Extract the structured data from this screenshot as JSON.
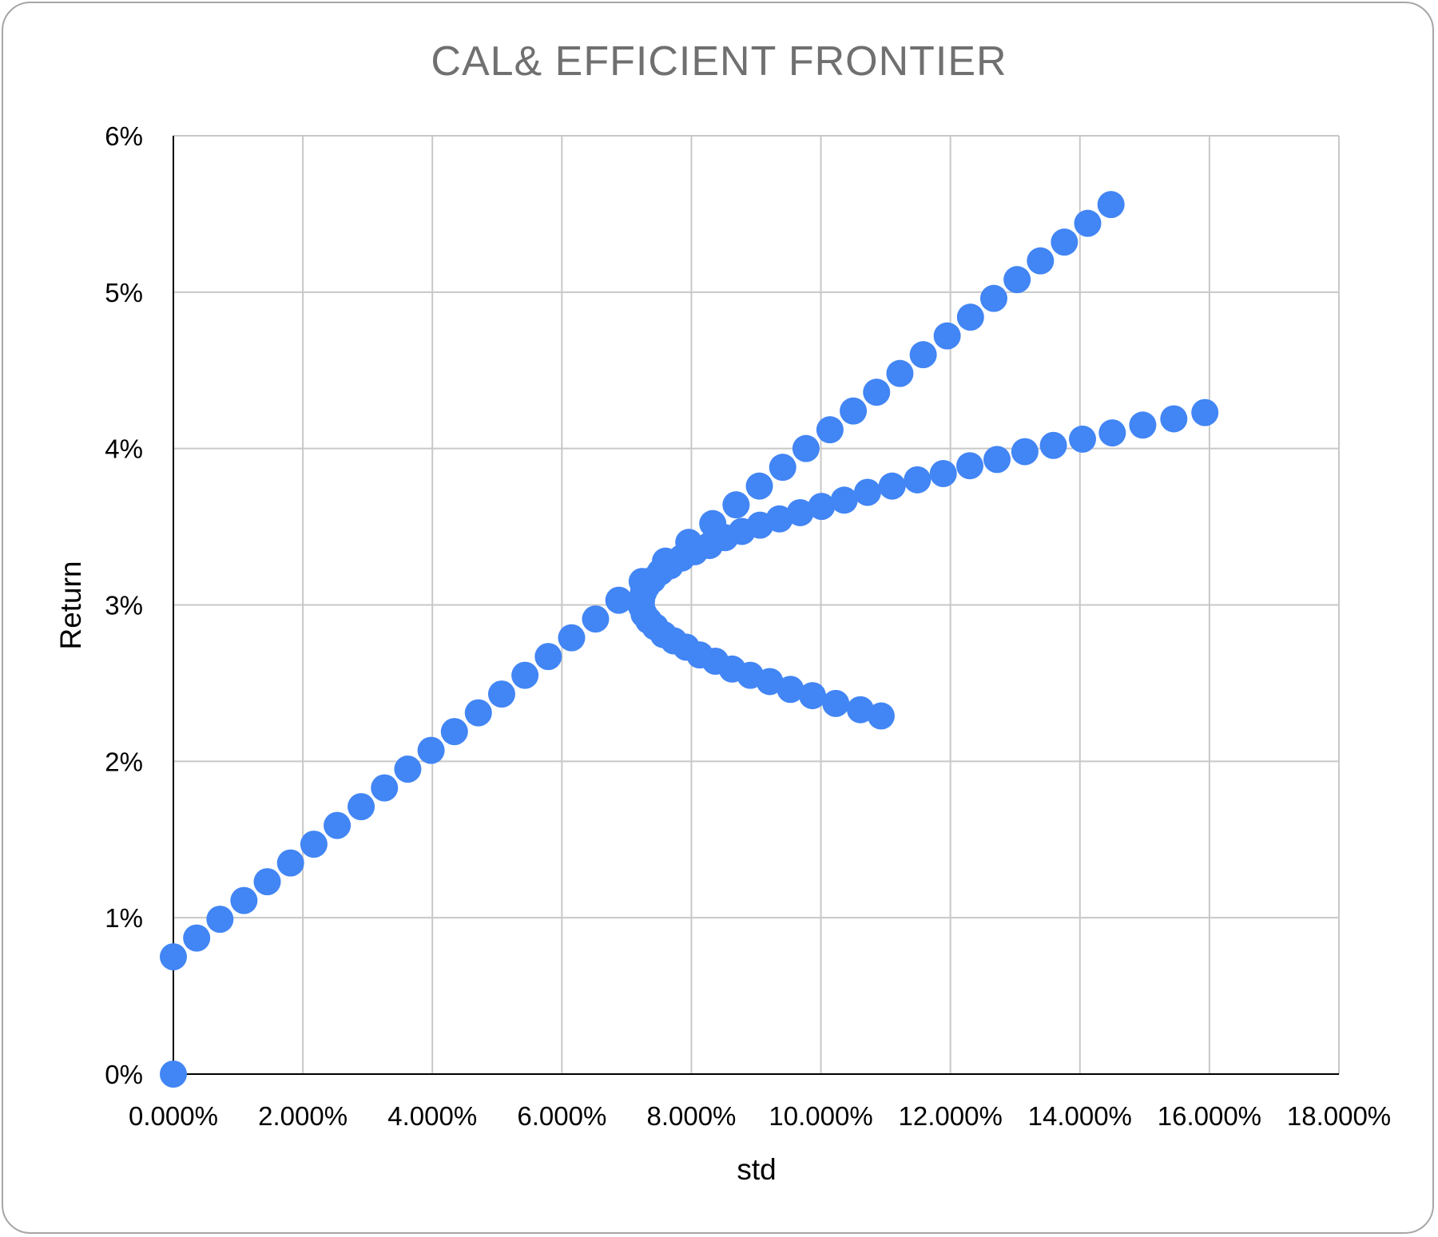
{
  "chart_data": {
    "type": "scatter",
    "title": "CAL& EFFICIENT FRONTIER",
    "xlabel": "std",
    "ylabel": "Return",
    "xlim": [
      0,
      0.18
    ],
    "ylim": [
      0,
      0.06
    ],
    "x_ticks": [
      0,
      0.02,
      0.04,
      0.06,
      0.08,
      0.1,
      0.12,
      0.14,
      0.16,
      0.18
    ],
    "x_tick_labels": [
      "0.000%",
      "2.000%",
      "4.000%",
      "6.000%",
      "8.000%",
      "10.000%",
      "12.000%",
      "14.000%",
      "16.000%",
      "18.000%"
    ],
    "y_ticks": [
      0,
      0.01,
      0.02,
      0.03,
      0.04,
      0.05,
      0.06
    ],
    "y_tick_labels": [
      "0%",
      "1%",
      "2%",
      "3%",
      "4%",
      "5%",
      "6%"
    ],
    "grid": true,
    "legend": "none",
    "marker_color": "#4285f4",
    "series": [
      {
        "points": [
          [
            0.0,
            0.0
          ],
          [
            0.0,
            0.0075
          ],
          [
            0.0036,
            0.0087
          ],
          [
            0.0072,
            0.0099
          ],
          [
            0.0109,
            0.0111
          ],
          [
            0.0145,
            0.0123
          ],
          [
            0.0181,
            0.0135
          ],
          [
            0.0217,
            0.0147
          ],
          [
            0.0253,
            0.0159
          ],
          [
            0.029,
            0.0171
          ],
          [
            0.0326,
            0.0183
          ],
          [
            0.0362,
            0.0195
          ],
          [
            0.0398,
            0.0207
          ],
          [
            0.0434,
            0.0219
          ],
          [
            0.0471,
            0.0231
          ],
          [
            0.0507,
            0.0243
          ],
          [
            0.0543,
            0.0255
          ],
          [
            0.0579,
            0.0267
          ],
          [
            0.0615,
            0.0279
          ],
          [
            0.0652,
            0.0291
          ],
          [
            0.0688,
            0.0303
          ],
          [
            0.0724,
            0.0315
          ],
          [
            0.076,
            0.0328
          ],
          [
            0.0796,
            0.034
          ],
          [
            0.0833,
            0.0352
          ],
          [
            0.0869,
            0.0364
          ],
          [
            0.0905,
            0.0376
          ],
          [
            0.0941,
            0.0388
          ],
          [
            0.0977,
            0.04
          ],
          [
            0.1014,
            0.0412
          ],
          [
            0.105,
            0.0424
          ],
          [
            0.1086,
            0.0436
          ],
          [
            0.1122,
            0.0448
          ],
          [
            0.1158,
            0.046
          ],
          [
            0.1195,
            0.0472
          ],
          [
            0.1231,
            0.0484
          ],
          [
            0.1267,
            0.0496
          ],
          [
            0.1303,
            0.0508
          ],
          [
            0.1339,
            0.052
          ],
          [
            0.1376,
            0.0532
          ],
          [
            0.1412,
            0.0544
          ],
          [
            0.1448,
            0.0556
          ],
          [
            0.1093,
            0.0229
          ],
          [
            0.1061,
            0.0233
          ],
          [
            0.1023,
            0.0237
          ],
          [
            0.0987,
            0.0242
          ],
          [
            0.0953,
            0.0246
          ],
          [
            0.0921,
            0.0251
          ],
          [
            0.0891,
            0.0255
          ],
          [
            0.0863,
            0.0259
          ],
          [
            0.0837,
            0.0264
          ],
          [
            0.0813,
            0.0268
          ],
          [
            0.0792,
            0.0273
          ],
          [
            0.0773,
            0.0277
          ],
          [
            0.0757,
            0.0281
          ],
          [
            0.0744,
            0.0286
          ],
          [
            0.0734,
            0.029
          ],
          [
            0.0727,
            0.0294
          ],
          [
            0.0723,
            0.0299
          ],
          [
            0.0723,
            0.0303
          ],
          [
            0.0726,
            0.0308
          ],
          [
            0.0731,
            0.0312
          ],
          [
            0.074,
            0.0316
          ],
          [
            0.0752,
            0.0321
          ],
          [
            0.0767,
            0.0325
          ],
          [
            0.0785,
            0.033
          ],
          [
            0.0805,
            0.0334
          ],
          [
            0.0828,
            0.0338
          ],
          [
            0.0852,
            0.0343
          ],
          [
            0.0878,
            0.0347
          ],
          [
            0.0906,
            0.0351
          ],
          [
            0.0936,
            0.0355
          ],
          [
            0.0968,
            0.0359
          ],
          [
            0.1001,
            0.0363
          ],
          [
            0.1036,
            0.0367
          ],
          [
            0.1072,
            0.0372
          ],
          [
            0.111,
            0.0376
          ],
          [
            0.1149,
            0.038
          ],
          [
            0.1189,
            0.0384
          ],
          [
            0.123,
            0.0389
          ],
          [
            0.1272,
            0.0393
          ],
          [
            0.1315,
            0.0398
          ],
          [
            0.1359,
            0.0402
          ],
          [
            0.1404,
            0.0406
          ],
          [
            0.145,
            0.041
          ],
          [
            0.1497,
            0.0415
          ],
          [
            0.1545,
            0.0419
          ],
          [
            0.1593,
            0.0423
          ]
        ]
      }
    ]
  }
}
